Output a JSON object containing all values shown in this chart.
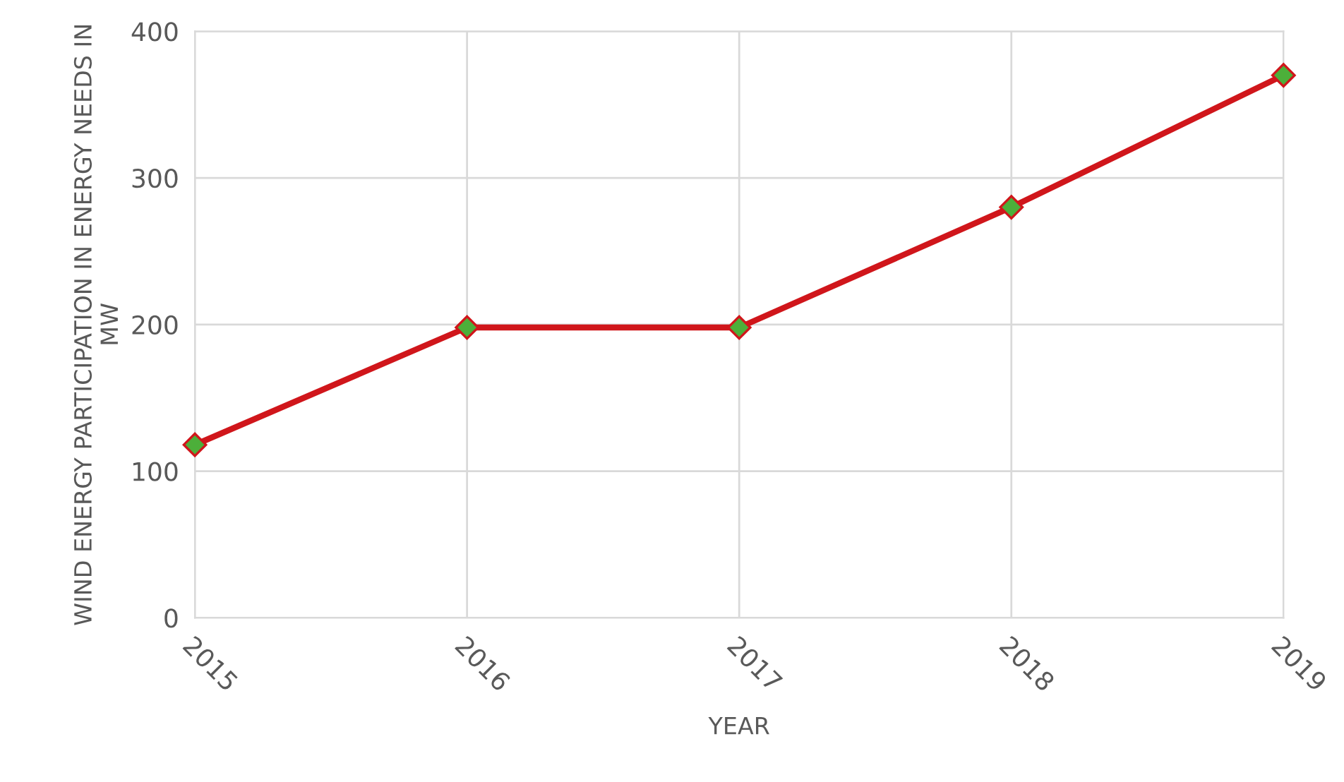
{
  "chart_data": {
    "type": "line",
    "xlabel": "YEAR",
    "ylabel": "WIND ENERGY PARTICIPATION IN ENERGY NEEDS IN MW",
    "categories": [
      "2015",
      "2016",
      "2017",
      "2018",
      "2019"
    ],
    "series": [
      {
        "color": "#d0161b",
        "values": [
          118,
          198,
          198,
          280,
          370
        ]
      }
    ],
    "marker": "diamond",
    "line_style": "solid",
    "ylim": [
      0,
      400
    ],
    "yticks": [
      0,
      100,
      200,
      300,
      400
    ],
    "grid": true,
    "legend": false
  }
}
